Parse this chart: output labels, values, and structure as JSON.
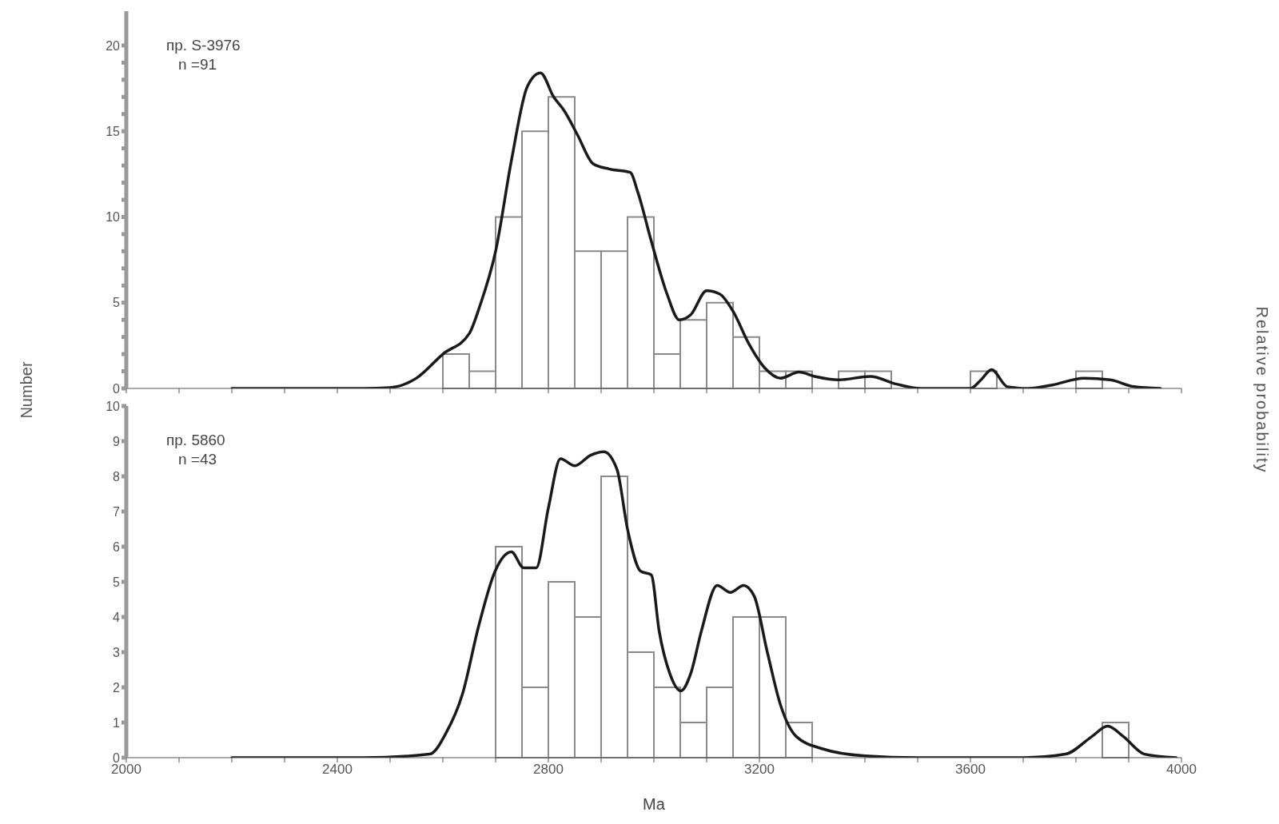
{
  "chart_data": [
    {
      "type": "histogram",
      "ylabel": "Number",
      "y2label": "Relative probability",
      "annotations": [
        "пр. S-3976",
        "n =91"
      ],
      "series": [
        {
          "color": "#8a8a8a",
          "bins": [
            2600,
            2650,
            2700,
            2750,
            2800,
            2850,
            2900,
            2950,
            3000,
            3050,
            3100,
            3150,
            3200,
            3250,
            3300,
            3350,
            3400,
            3450,
            3500,
            3550,
            3600,
            3650,
            3700,
            3750,
            3800,
            3850
          ],
          "values": [
            2,
            1,
            10,
            15,
            17,
            8,
            8,
            10,
            2,
            4,
            5,
            3,
            1,
            1,
            0,
            1,
            1,
            0,
            0,
            0,
            1,
            0,
            0,
            0,
            1
          ]
        },
        {
          "type": "line",
          "color": "#1a1a1a",
          "x": [
            2200,
            2450,
            2500,
            2550,
            2600,
            2650,
            2670,
            2700,
            2730,
            2760,
            2785,
            2810,
            2830,
            2855,
            2885,
            2915,
            2955,
            2970,
            2995,
            3025,
            3048,
            3070,
            3100,
            3125,
            3150,
            3180,
            3210,
            3240,
            3275,
            3305,
            3350,
            3410,
            3460,
            3505,
            3600,
            3620,
            3640,
            3670,
            3710,
            3755,
            3815,
            3865,
            3910,
            3960
          ],
          "values": [
            0,
            0,
            0.05,
            0.6,
            2,
            3.2,
            4.8,
            8,
            13.3,
            17.6,
            18.4,
            17,
            16.2,
            14.8,
            13.1,
            12.8,
            12.6,
            11.4,
            8.6,
            5.5,
            4,
            4.3,
            5.7,
            5.5,
            4.5,
            2.6,
            1.2,
            0.6,
            0.95,
            0.7,
            0.5,
            0.7,
            0.25,
            0,
            0,
            0.5,
            1.1,
            0.1,
            0,
            0.2,
            0.6,
            0.5,
            0.1,
            0
          ]
        }
      ],
      "xlim": [
        2000,
        4000
      ],
      "ylim": [
        0,
        22
      ],
      "xticks": [
        2000,
        {
          "value": 2100,
          "label": null
        },
        {
          "value": 2200,
          "label": null
        },
        {
          "value": 2300,
          "label": null
        },
        2400,
        {
          "value": 2500,
          "label": null
        },
        {
          "value": 2600,
          "label": null
        },
        {
          "value": 2700,
          "label": null
        },
        2800,
        {
          "value": 2900,
          "label": null
        },
        {
          "value": 3000,
          "label": null
        },
        {
          "value": 3100,
          "label": null
        },
        3200,
        {
          "value": 3300,
          "label": null
        },
        {
          "value": 3400,
          "label": null
        },
        {
          "value": 3500,
          "label": null
        },
        3600,
        {
          "value": 3700,
          "label": null
        },
        {
          "value": 3800,
          "label": null
        },
        {
          "value": 3900,
          "label": null
        },
        4000
      ],
      "yticks": [
        0,
        {
          "value": 1,
          "label": null
        },
        {
          "value": 2,
          "label": null
        },
        {
          "value": 3,
          "label": null
        },
        {
          "value": 4,
          "label": null
        },
        5,
        {
          "value": 6,
          "label": null
        },
        {
          "value": 7,
          "label": null
        },
        {
          "value": 8,
          "label": null
        },
        {
          "value": 9,
          "label": null
        },
        10,
        {
          "value": 11,
          "label": null
        },
        {
          "value": 12,
          "label": null
        },
        {
          "value": 13,
          "label": null
        },
        {
          "value": 14,
          "label": null
        },
        15,
        {
          "value": 16,
          "label": null
        },
        {
          "value": 17,
          "label": null
        },
        {
          "value": 18,
          "label": null
        },
        {
          "value": 19,
          "label": null
        },
        20
      ],
      "tick_labels": "y"
    },
    {
      "type": "histogram",
      "xlabel": "Ma",
      "annotations": [
        "пр. 5860",
        "n =43"
      ],
      "series": [
        {
          "color": "#8a8a8a",
          "bins": [
            2700,
            2750,
            2800,
            2850,
            2900,
            2950,
            3000,
            3050,
            3100,
            3150,
            3200,
            3250,
            3300,
            3350,
            3400,
            3450,
            3500,
            3550,
            3600,
            3650,
            3700,
            3750,
            3800,
            3850,
            3900
          ],
          "values": [
            6,
            2,
            5,
            4,
            8,
            3,
            2,
            1,
            2,
            4,
            4,
            1,
            0,
            0,
            0,
            0,
            0,
            0,
            0,
            0,
            0,
            0,
            0,
            1
          ]
        },
        {
          "type": "line",
          "color": "#1a1a1a",
          "x": [
            2200,
            2450,
            2575,
            2606,
            2637,
            2668,
            2699,
            2730,
            2753,
            2777,
            2800,
            2823,
            2850,
            2880,
            2905,
            2930,
            2950,
            2975,
            2995,
            3010,
            3030,
            3051,
            3070,
            3090,
            3120,
            3145,
            3170,
            3190,
            3215,
            3240,
            3270,
            3320,
            3400,
            3500,
            3700,
            3780,
            3830,
            3860,
            3890,
            3930,
            3990
          ],
          "values": [
            0,
            0,
            0.1,
            0.7,
            1.8,
            3.75,
            5.3,
            5.85,
            5.4,
            5.4,
            7.1,
            8.5,
            8.3,
            8.6,
            8.7,
            8.2,
            6.5,
            5.3,
            5.2,
            3.6,
            2.4,
            1.9,
            2.4,
            3.6,
            4.9,
            4.7,
            4.9,
            4.6,
            3,
            1.5,
            0.6,
            0.25,
            0.05,
            0,
            0,
            0.1,
            0.6,
            0.9,
            0.6,
            0.1,
            0
          ]
        }
      ],
      "xlim": [
        2000,
        4000
      ],
      "ylim": [
        0,
        10
      ],
      "xticks": [
        2000,
        {
          "value": 2100,
          "label": null
        },
        {
          "value": 2200,
          "label": null
        },
        {
          "value": 2300,
          "label": null
        },
        2400,
        {
          "value": 2500,
          "label": null
        },
        {
          "value": 2600,
          "label": null
        },
        {
          "value": 2700,
          "label": null
        },
        2800,
        {
          "value": 2900,
          "label": null
        },
        {
          "value": 3000,
          "label": null
        },
        {
          "value": 3100,
          "label": null
        },
        3200,
        {
          "value": 3300,
          "label": null
        },
        {
          "value": 3400,
          "label": null
        },
        {
          "value": 3500,
          "label": null
        },
        3600,
        {
          "value": 3700,
          "label": null
        },
        {
          "value": 3800,
          "label": null
        },
        {
          "value": 3900,
          "label": null
        },
        4000
      ],
      "yticks": [
        0,
        1,
        2,
        3,
        4,
        5,
        6,
        7,
        8,
        9,
        10
      ]
    }
  ]
}
